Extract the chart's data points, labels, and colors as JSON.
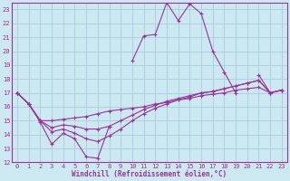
{
  "background_color": "#cce8f0",
  "grid_color": "#aaccdd",
  "line_color": "#993399",
  "xlabel": "Windchill (Refroidissement éolien,°C)",
  "xlim": [
    -0.5,
    23.5
  ],
  "ylim": [
    12,
    23.5
  ],
  "xticks": [
    0,
    1,
    2,
    3,
    4,
    5,
    6,
    7,
    8,
    9,
    10,
    11,
    12,
    13,
    14,
    15,
    16,
    17,
    18,
    19,
    20,
    21,
    22,
    23
  ],
  "yticks": [
    12,
    13,
    14,
    15,
    16,
    17,
    18,
    19,
    20,
    21,
    22,
    23
  ],
  "series": [
    [
      17.0,
      16.2,
      null,
      null,
      null,
      null,
      null,
      null,
      null,
      null,
      null,
      null,
      null,
      null,
      null,
      null,
      null,
      null,
      null,
      null,
      null,
      null,
      null,
      null
    ],
    [
      17.0,
      16.2,
      14.9,
      13.3,
      14.1,
      13.7,
      12.4,
      12.3,
      14.6,
      null,
      19.3,
      21.1,
      21.2,
      23.5,
      22.2,
      23.4,
      22.7,
      20.0,
      18.5,
      17.0,
      null,
      18.3,
      17.0,
      17.2
    ],
    [
      17.0,
      16.2,
      15.0,
      15.0,
      15.1,
      15.2,
      15.3,
      15.5,
      15.7,
      15.8,
      15.9,
      16.0,
      16.2,
      16.3,
      16.5,
      16.6,
      16.8,
      16.9,
      17.0,
      17.2,
      17.3,
      17.4,
      17.0,
      17.2
    ],
    [
      17.0,
      16.2,
      15.0,
      14.5,
      14.7,
      14.6,
      14.4,
      14.4,
      14.6,
      15.0,
      15.4,
      15.8,
      16.1,
      16.4,
      16.6,
      16.8,
      17.0,
      17.1,
      17.3,
      17.5,
      17.7,
      17.9,
      17.0,
      17.2
    ],
    [
      17.0,
      16.2,
      15.0,
      14.2,
      14.4,
      14.1,
      13.7,
      13.5,
      13.9,
      14.4,
      15.0,
      15.5,
      15.9,
      16.2,
      16.5,
      16.7,
      17.0,
      17.1,
      17.3,
      17.5,
      17.7,
      17.9,
      17.0,
      17.2
    ]
  ],
  "tick_fontsize": 5.0,
  "label_fontsize": 5.5
}
